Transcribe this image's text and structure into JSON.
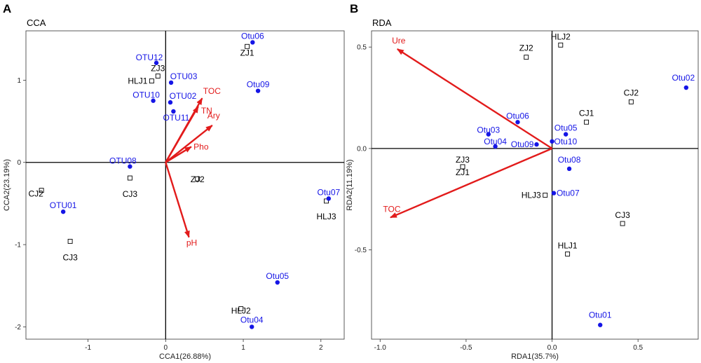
{
  "colors": {
    "otu": "#1515e6",
    "env": "#e21b1b",
    "site": "#000000"
  },
  "chart_data": [
    {
      "panel_letter": "A",
      "title": "CCA",
      "type": "scatter",
      "xlabel": "CCA1(26.88%)",
      "ylabel": "CCA2(23.19%)",
      "xlim": [
        -1.8,
        2.3
      ],
      "ylim": [
        -2.15,
        1.6
      ],
      "xticks": [
        -1,
        0,
        1,
        2
      ],
      "yticks": [
        -2,
        -1,
        0,
        1
      ],
      "sites": [
        {
          "label": "ZJ1",
          "x": 1.05,
          "y": 1.41
        },
        {
          "label": "ZJ3",
          "x": -0.1,
          "y": 1.05
        },
        {
          "label": "HLJ1",
          "x": -0.18,
          "y": 0.99
        },
        {
          "label": "ZJ2",
          "x": 0.41,
          "y": -0.2
        },
        {
          "label": "CJ3",
          "x": -0.46,
          "y": -0.19
        },
        {
          "label": "CJ2",
          "x": -1.6,
          "y": -0.34
        },
        {
          "label": "CJ3",
          "x": -1.23,
          "y": -0.96
        },
        {
          "label": "HLJ3",
          "x": 2.07,
          "y": -0.47
        },
        {
          "label": "HLJ2",
          "x": 0.97,
          "y": -1.78
        }
      ],
      "otus": [
        {
          "label": "Otu06",
          "x": 1.12,
          "y": 1.46
        },
        {
          "label": "OTU12",
          "x": -0.12,
          "y": 1.21
        },
        {
          "label": "OTU03",
          "x": 0.07,
          "y": 0.97
        },
        {
          "label": "Otu09",
          "x": 1.19,
          "y": 0.87
        },
        {
          "label": "OTU10",
          "x": -0.16,
          "y": 0.75
        },
        {
          "label": "OTU02",
          "x": 0.06,
          "y": 0.73
        },
        {
          "label": "OTU11",
          "x": 0.1,
          "y": 0.62
        },
        {
          "label": "OTU08",
          "x": -0.46,
          "y": -0.05
        },
        {
          "label": "OTU01",
          "x": -1.32,
          "y": -0.6
        },
        {
          "label": "Otu07",
          "x": 2.1,
          "y": -0.44
        },
        {
          "label": "Otu05",
          "x": 1.44,
          "y": -1.46
        },
        {
          "label": "Otu04",
          "x": 1.11,
          "y": -2.0
        }
      ],
      "env": [
        {
          "label": "TOC",
          "x": 0.47,
          "y": 0.78
        },
        {
          "label": "TN",
          "x": 0.42,
          "y": 0.68
        },
        {
          "label": "Ary",
          "x": 0.6,
          "y": 0.45
        },
        {
          "label": "Pho",
          "x": 0.33,
          "y": 0.19
        },
        {
          "label": "pH",
          "x": 0.3,
          "y": -0.91
        }
      ]
    },
    {
      "panel_letter": "B",
      "title": "RDA",
      "type": "scatter",
      "xlabel": "RDA1(35.7%)",
      "ylabel": "RDA2(11.19%)",
      "xlim": [
        -1.05,
        0.85
      ],
      "ylim": [
        -0.94,
        0.58
      ],
      "xticks": [
        -1.0,
        -0.5,
        0.0,
        0.5
      ],
      "xtick_labels": [
        "-1.0",
        "-0.5",
        "0.0",
        "0.5"
      ],
      "yticks": [
        -0.5,
        0.0,
        0.5
      ],
      "ytick_labels": [
        "-0.5",
        "0.0",
        "0.5"
      ],
      "sites": [
        {
          "label": "HLJ2",
          "x": 0.05,
          "y": 0.51
        },
        {
          "label": "ZJ2",
          "x": -0.15,
          "y": 0.45
        },
        {
          "label": "CJ2",
          "x": 0.46,
          "y": 0.23
        },
        {
          "label": "CJ1",
          "x": 0.2,
          "y": 0.13
        },
        {
          "label": "ZJ3",
          "x": -0.52,
          "y": -0.09
        },
        {
          "label": "ZJ1",
          "x": -0.52,
          "y": -0.09
        },
        {
          "label": "HLJ3",
          "x": -0.04,
          "y": -0.23
        },
        {
          "label": "CJ3",
          "x": 0.41,
          "y": -0.37
        },
        {
          "label": "HLJ1",
          "x": 0.09,
          "y": -0.52
        }
      ],
      "otus": [
        {
          "label": "Otu02",
          "x": 0.78,
          "y": 0.3
        },
        {
          "label": "Otu06",
          "x": -0.2,
          "y": 0.13
        },
        {
          "label": "Otu05",
          "x": 0.08,
          "y": 0.07
        },
        {
          "label": "Otu03",
          "x": -0.37,
          "y": 0.07
        },
        {
          "label": "Otu04",
          "x": -0.33,
          "y": 0.01
        },
        {
          "label": "Otu09",
          "x": -0.09,
          "y": 0.02
        },
        {
          "label": "Otu10",
          "x": 0.0,
          "y": 0.035
        },
        {
          "label": "Otu08",
          "x": 0.1,
          "y": -0.1
        },
        {
          "label": "Otu07",
          "x": 0.01,
          "y": -0.22
        },
        {
          "label": "Otu01",
          "x": 0.28,
          "y": -0.87
        }
      ],
      "env": [
        {
          "label": "Ure",
          "x": -0.9,
          "y": 0.49
        },
        {
          "label": "TOC",
          "x": -0.94,
          "y": -0.34
        }
      ]
    }
  ]
}
